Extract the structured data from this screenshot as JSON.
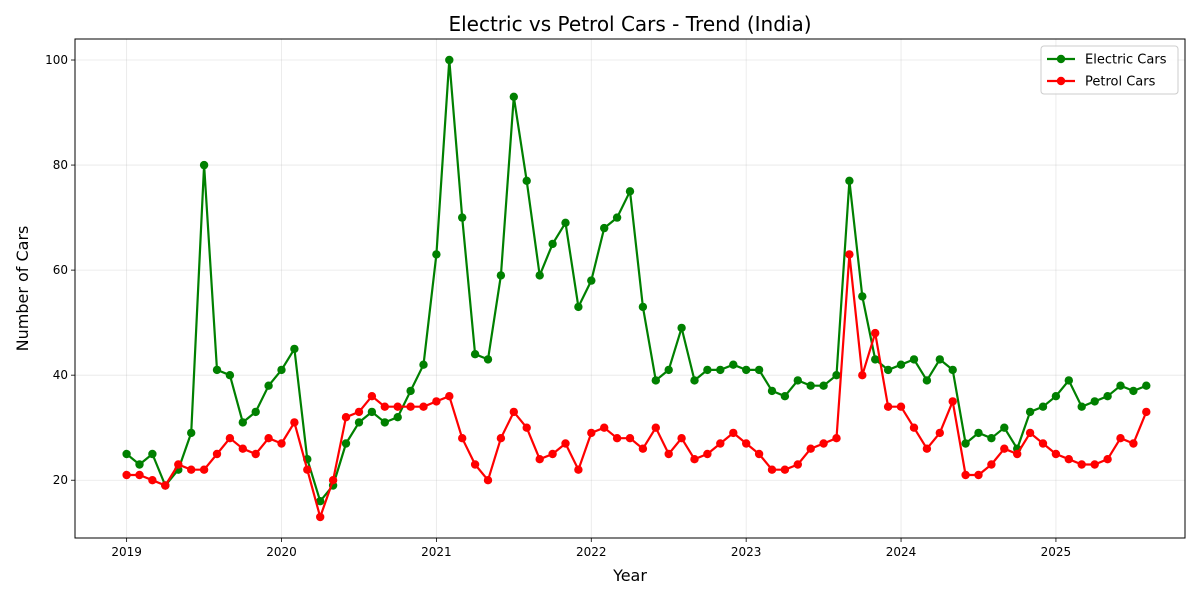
{
  "chart_data": {
    "type": "line",
    "title": "Electric vs Petrol Cars - Trend (India)",
    "xlabel": "Year",
    "ylabel": "Number of Cars",
    "x_ticks": [
      "2019",
      "2020",
      "2021",
      "2022",
      "2023",
      "2024",
      "2025"
    ],
    "y_ticks": [
      20,
      40,
      60,
      80,
      100
    ],
    "xlim": [
      "2018-09",
      "2025-11"
    ],
    "ylim": [
      9,
      104
    ],
    "grid": true,
    "legend_position": "top-right",
    "x": [
      "2019-01",
      "2019-02",
      "2019-03",
      "2019-04",
      "2019-05",
      "2019-06",
      "2019-07",
      "2019-08",
      "2019-09",
      "2019-10",
      "2019-11",
      "2019-12",
      "2020-01",
      "2020-02",
      "2020-03",
      "2020-04",
      "2020-05",
      "2020-06",
      "2020-07",
      "2020-08",
      "2020-09",
      "2020-10",
      "2020-11",
      "2020-12",
      "2021-01",
      "2021-02",
      "2021-03",
      "2021-04",
      "2021-05",
      "2021-06",
      "2021-07",
      "2021-08",
      "2021-09",
      "2021-10",
      "2021-11",
      "2021-12",
      "2022-01",
      "2022-02",
      "2022-03",
      "2022-04",
      "2022-05",
      "2022-06",
      "2022-07",
      "2022-08",
      "2022-09",
      "2022-10",
      "2022-11",
      "2022-12",
      "2023-01",
      "2023-02",
      "2023-03",
      "2023-04",
      "2023-05",
      "2023-06",
      "2023-07",
      "2023-08",
      "2023-09",
      "2023-10",
      "2023-11",
      "2023-12",
      "2024-01",
      "2024-02",
      "2024-03",
      "2024-04",
      "2024-05",
      "2024-06",
      "2024-07",
      "2024-08",
      "2024-09",
      "2024-10",
      "2024-11",
      "2024-12",
      "2025-01",
      "2025-02",
      "2025-03",
      "2025-04",
      "2025-05",
      "2025-06",
      "2025-07",
      "2025-08"
    ],
    "series": [
      {
        "name": "Electric Cars",
        "color": "#008000",
        "values": [
          25,
          23,
          25,
          19,
          22,
          29,
          80,
          41,
          40,
          31,
          33,
          38,
          41,
          45,
          24,
          16,
          19,
          27,
          31,
          33,
          31,
          32,
          37,
          42,
          63,
          100,
          70,
          44,
          43,
          59,
          93,
          77,
          59,
          65,
          69,
          53,
          58,
          68,
          70,
          75,
          53,
          39,
          41,
          49,
          39,
          41,
          41,
          42,
          41,
          41,
          37,
          36,
          39,
          38,
          38,
          40,
          77,
          55,
          43,
          41,
          42,
          43,
          39,
          43,
          41,
          27,
          29,
          28,
          30,
          26,
          33,
          34,
          36,
          39,
          34,
          35,
          36,
          38,
          37,
          38
        ]
      },
      {
        "name": "Petrol Cars",
        "color": "#ff0000",
        "values": [
          21,
          21,
          20,
          19,
          23,
          22,
          22,
          25,
          28,
          26,
          25,
          28,
          27,
          31,
          22,
          13,
          20,
          32,
          33,
          36,
          34,
          34,
          34,
          34,
          35,
          36,
          28,
          23,
          20,
          28,
          33,
          30,
          24,
          25,
          27,
          22,
          29,
          30,
          28,
          28,
          26,
          30,
          25,
          28,
          24,
          25,
          27,
          29,
          27,
          25,
          22,
          22,
          23,
          26,
          27,
          28,
          63,
          40,
          48,
          34,
          34,
          30,
          26,
          29,
          35,
          21,
          21,
          23,
          26,
          25,
          29,
          27,
          25,
          24,
          23,
          23,
          24,
          28,
          27,
          33
        ]
      }
    ]
  }
}
